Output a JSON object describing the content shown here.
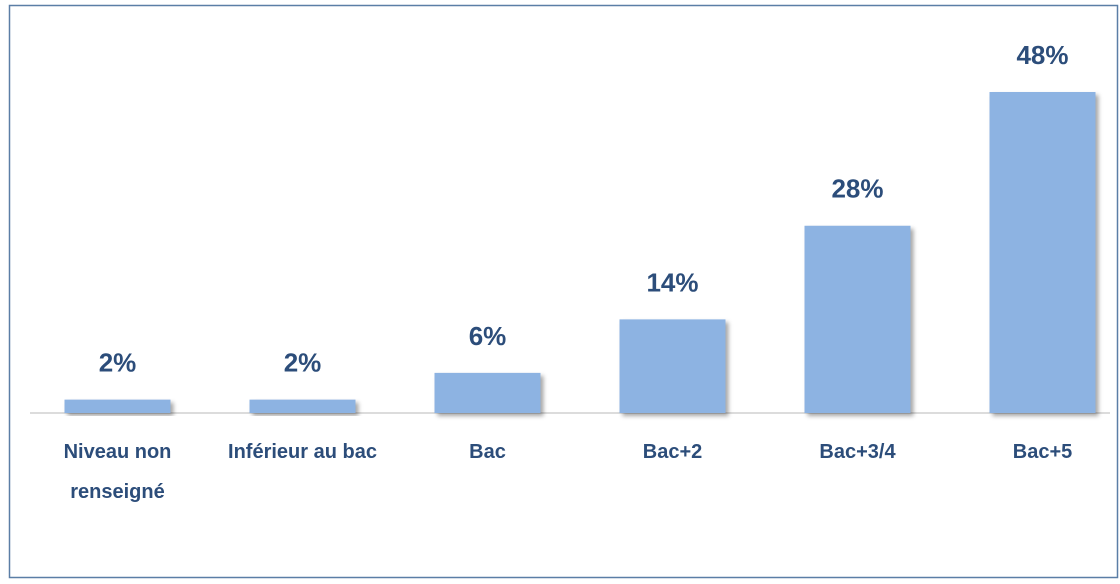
{
  "chart_data": {
    "type": "bar",
    "categories": [
      "Niveau non renseigné",
      "Inférieur au bac",
      "Bac",
      "Bac+2",
      "Bac+3/4",
      "Bac+5"
    ],
    "values": [
      2,
      2,
      6,
      14,
      28,
      48
    ],
    "value_labels": [
      "2%",
      "2%",
      "6%",
      "14%",
      "28%",
      "48%"
    ],
    "color": "#8db3e2"
  }
}
